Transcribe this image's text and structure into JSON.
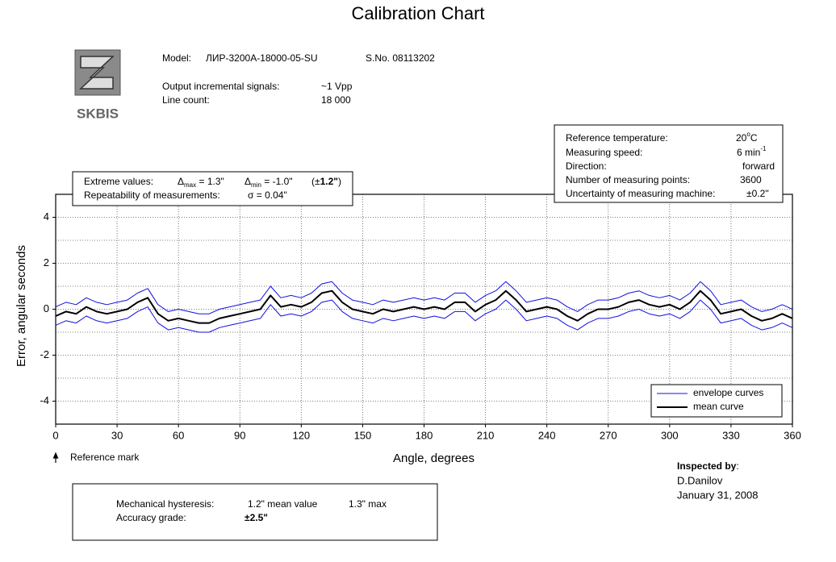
{
  "title": "Calibration Chart",
  "header": {
    "logo": "SKBIS",
    "model_label": "Model:",
    "model": "ЛИР-3200A-18000-05-SU",
    "serial": "S.No. 08113202",
    "output_label": "Output incremental signals:",
    "output": "~1 Vpp",
    "line_count_label": "Line count:",
    "line_count": "18 000"
  },
  "conditions": {
    "temperature_label": "Reference temperature:",
    "temperature": "20",
    "temperature_sup": "o",
    "temperature_unit": "C",
    "speed_label": "Measuring speed:",
    "speed": "6 min",
    "speed_sup": "-1",
    "direction_label": "Direction:",
    "direction": "forward",
    "points_label": "Number of measuring points:",
    "points": "3600",
    "uncertainty_label": "Uncertainty of measuring machine:",
    "uncertainty": "±0.2''"
  },
  "extremes": {
    "label": "Extreme values:",
    "delta": "Δ",
    "max_sub": "max",
    "max_text": " = 1.3\"",
    "min_sub": "min",
    "min_text": " = -1.0\"",
    "range_open": "(±",
    "range": "1.2\"",
    "range_close": ")",
    "repeat_label": "Repeatability of measurements:",
    "repeat": "σ = 0.04\""
  },
  "reference_mark": "Reference mark",
  "inspection": {
    "label": "Inspected by",
    "colon": ":",
    "name": "D.Danilov",
    "date": "January 31, 2008"
  },
  "summary": {
    "hysteresis_label": "Mechanical hysteresis:",
    "hysteresis_mean": "1.2\" mean value",
    "hysteresis_max": "1.3\" max",
    "grade_label": "Accuracy grade:",
    "grade": "±2.5\""
  },
  "chart_data": {
    "type": "line",
    "xlabel": "Angle, degrees",
    "ylabel": "Error, angular seconds",
    "xlim": [
      0,
      360
    ],
    "xticks": [
      0,
      30,
      60,
      90,
      120,
      150,
      180,
      210,
      240,
      270,
      300,
      330,
      360
    ],
    "ylim": [
      -5,
      5
    ],
    "yticks": [
      -4,
      -2,
      0,
      2,
      4
    ],
    "y_minor_ticks": [
      -5,
      -3,
      -1,
      1,
      3,
      5
    ],
    "grid": true,
    "legend": "lower right",
    "x": [
      0,
      5,
      10,
      15,
      20,
      25,
      30,
      35,
      40,
      45,
      50,
      55,
      60,
      65,
      70,
      75,
      80,
      85,
      90,
      95,
      100,
      105,
      110,
      115,
      120,
      125,
      130,
      135,
      140,
      145,
      150,
      155,
      160,
      165,
      170,
      175,
      180,
      185,
      190,
      195,
      200,
      205,
      210,
      215,
      220,
      225,
      230,
      235,
      240,
      245,
      250,
      255,
      260,
      265,
      270,
      275,
      280,
      285,
      290,
      295,
      300,
      305,
      310,
      315,
      320,
      325,
      330,
      335,
      340,
      345,
      350,
      355,
      360
    ],
    "series": [
      {
        "name": "envelope curves",
        "color": "#1010e0",
        "line_width": 1,
        "upper": [
          0.1,
          0.3,
          0.2,
          0.5,
          0.3,
          0.2,
          0.3,
          0.4,
          0.7,
          0.9,
          0.2,
          -0.1,
          0.0,
          -0.1,
          -0.2,
          -0.2,
          0.0,
          0.1,
          0.2,
          0.3,
          0.4,
          1.0,
          0.5,
          0.6,
          0.5,
          0.7,
          1.1,
          1.2,
          0.7,
          0.4,
          0.3,
          0.2,
          0.4,
          0.3,
          0.4,
          0.5,
          0.4,
          0.5,
          0.4,
          0.7,
          0.7,
          0.3,
          0.6,
          0.8,
          1.2,
          0.8,
          0.3,
          0.4,
          0.5,
          0.4,
          0.1,
          -0.1,
          0.2,
          0.4,
          0.4,
          0.5,
          0.7,
          0.8,
          0.6,
          0.5,
          0.6,
          0.4,
          0.7,
          1.2,
          0.8,
          0.2,
          0.3,
          0.4,
          0.1,
          -0.1,
          0.0,
          0.2,
          0.0
        ],
        "lower": [
          -0.7,
          -0.5,
          -0.6,
          -0.3,
          -0.5,
          -0.6,
          -0.5,
          -0.4,
          -0.1,
          0.1,
          -0.6,
          -0.9,
          -0.8,
          -0.9,
          -1.0,
          -1.0,
          -0.8,
          -0.7,
          -0.6,
          -0.5,
          -0.4,
          0.2,
          -0.3,
          -0.2,
          -0.3,
          -0.1,
          0.3,
          0.4,
          -0.1,
          -0.4,
          -0.5,
          -0.6,
          -0.4,
          -0.5,
          -0.4,
          -0.3,
          -0.4,
          -0.3,
          -0.4,
          -0.1,
          -0.1,
          -0.5,
          -0.2,
          0.0,
          0.4,
          0.0,
          -0.5,
          -0.4,
          -0.3,
          -0.4,
          -0.7,
          -0.9,
          -0.6,
          -0.4,
          -0.4,
          -0.3,
          -0.1,
          0.0,
          -0.2,
          -0.3,
          -0.2,
          -0.4,
          -0.1,
          0.4,
          0.0,
          -0.6,
          -0.5,
          -0.4,
          -0.7,
          -0.9,
          -0.8,
          -0.6,
          -0.8
        ]
      },
      {
        "name": "mean curve",
        "color": "#000000",
        "line_width": 2,
        "values": [
          -0.3,
          -0.1,
          -0.2,
          0.1,
          -0.1,
          -0.2,
          -0.1,
          0.0,
          0.3,
          0.5,
          -0.2,
          -0.5,
          -0.4,
          -0.5,
          -0.6,
          -0.6,
          -0.4,
          -0.3,
          -0.2,
          -0.1,
          0.0,
          0.6,
          0.1,
          0.2,
          0.1,
          0.3,
          0.7,
          0.8,
          0.3,
          0.0,
          -0.1,
          -0.2,
          0.0,
          -0.1,
          0.0,
          0.1,
          0.0,
          0.1,
          0.0,
          0.3,
          0.3,
          -0.1,
          0.2,
          0.4,
          0.8,
          0.4,
          -0.1,
          0.0,
          0.1,
          0.0,
          -0.3,
          -0.5,
          -0.2,
          0.0,
          0.0,
          0.1,
          0.3,
          0.4,
          0.2,
          0.1,
          0.2,
          0.0,
          0.3,
          0.8,
          0.4,
          -0.2,
          -0.1,
          0.0,
          -0.3,
          -0.5,
          -0.4,
          -0.2,
          -0.4
        ]
      }
    ]
  }
}
